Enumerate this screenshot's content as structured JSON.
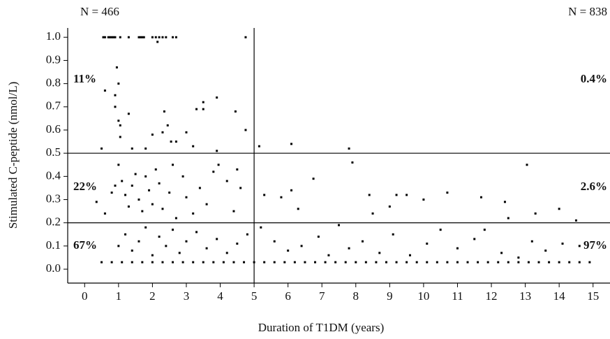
{
  "chart_data": {
    "type": "scatter",
    "xlabel": "Duration of T1DM (years)",
    "ylabel": "Stimulated C-peptide (nmol/L)",
    "annotations": [
      "N = 466",
      "N = 838",
      "11%",
      "0.4%",
      "22%",
      "2.6%",
      "67%",
      "97%"
    ],
    "color": "#000000",
    "xlim": [
      -0.5,
      15.5
    ],
    "ylim": [
      -0.06,
      1.04
    ],
    "xticks": [
      0,
      1,
      2,
      3,
      4,
      5,
      6,
      7,
      8,
      9,
      10,
      11,
      12,
      13,
      14,
      15
    ],
    "yticks": [
      {
        "value": 0,
        "label": "0.0"
      },
      0.1,
      0.2,
      0.3,
      0.4,
      0.5,
      0.6,
      0.7,
      0.8,
      0.9,
      {
        "value": 1,
        "label": "1.0"
      }
    ],
    "reference_lines": {
      "x": [
        5
      ],
      "y": [
        0.2,
        0.5
      ]
    },
    "x": [
      0.55,
      0.6,
      0.7,
      0.75,
      0.8,
      0.85,
      0.9,
      1.05,
      1.3,
      1.6,
      1.65,
      1.7,
      1.75,
      2.0,
      2.1,
      2.2,
      2.3,
      2.4,
      2.6,
      2.7,
      4.75,
      2.15,
      0.6,
      0.95,
      1.0,
      0.9,
      0.9,
      1.0,
      1.05,
      1.05,
      1.3,
      2.0,
      2.35,
      2.45,
      2.3,
      2.55,
      2.7,
      3.0,
      3.2,
      3.3,
      3.5,
      3.5,
      3.9,
      4.45,
      4.75,
      0.5,
      1.4,
      1.8,
      3.9,
      5.15,
      6.1,
      7.8,
      0.35,
      0.6,
      0.8,
      0.9,
      1.0,
      1.1,
      1.2,
      1.3,
      1.4,
      1.5,
      1.6,
      1.7,
      1.8,
      1.9,
      2.0,
      2.1,
      2.2,
      2.3,
      2.5,
      2.6,
      2.7,
      2.9,
      3.0,
      3.2,
      3.4,
      3.6,
      3.8,
      3.95,
      4.2,
      4.5,
      4.6,
      4.4,
      5.3,
      5.8,
      6.1,
      6.3,
      6.75,
      7.9,
      8.4,
      8.5,
      9.0,
      9.2,
      9.5,
      10.0,
      10.7,
      11.7,
      12.4,
      12.5,
      13.05,
      13.3,
      14.0,
      14.5,
      0.5,
      0.8,
      1.1,
      1.4,
      1.7,
      2.0,
      2.3,
      2.6,
      2.9,
      3.2,
      3.5,
      3.8,
      4.1,
      4.4,
      4.7,
      5.0,
      5.3,
      5.6,
      5.9,
      6.2,
      6.5,
      6.8,
      7.1,
      7.4,
      7.7,
      8.0,
      8.3,
      8.6,
      8.9,
      9.2,
      9.5,
      9.8,
      10.1,
      10.4,
      10.7,
      11.0,
      11.3,
      11.6,
      11.9,
      12.2,
      12.5,
      12.8,
      13.1,
      13.4,
      13.7,
      14.0,
      14.3,
      14.6,
      14.9,
      1.0,
      1.2,
      1.4,
      1.6,
      1.8,
      2.0,
      2.2,
      2.4,
      2.6,
      2.8,
      3.0,
      3.3,
      3.6,
      3.9,
      4.2,
      4.5,
      4.8,
      5.2,
      5.6,
      6.0,
      6.4,
      6.9,
      7.2,
      7.5,
      7.8,
      8.2,
      8.7,
      9.1,
      9.6,
      10.1,
      10.5,
      11.0,
      11.5,
      11.8,
      12.3,
      12.8,
      13.2,
      13.6,
      14.1,
      14.6
    ],
    "values": [
      1.0,
      1.0,
      1.0,
      1.0,
      1.0,
      1.0,
      1.0,
      1.0,
      1.0,
      1.0,
      1.0,
      1.0,
      1.0,
      1.0,
      1.0,
      1.0,
      1.0,
      1.0,
      1.0,
      1.0,
      1.0,
      0.98,
      0.77,
      0.87,
      0.8,
      0.7,
      0.75,
      0.64,
      0.62,
      0.57,
      0.67,
      0.58,
      0.68,
      0.62,
      0.59,
      0.55,
      0.55,
      0.59,
      0.53,
      0.69,
      0.72,
      0.69,
      0.74,
      0.68,
      0.6,
      0.52,
      0.52,
      0.52,
      0.51,
      0.53,
      0.54,
      0.52,
      0.29,
      0.24,
      0.33,
      0.36,
      0.45,
      0.38,
      0.32,
      0.27,
      0.36,
      0.41,
      0.3,
      0.25,
      0.4,
      0.34,
      0.28,
      0.43,
      0.37,
      0.26,
      0.33,
      0.45,
      0.22,
      0.4,
      0.31,
      0.24,
      0.35,
      0.28,
      0.42,
      0.45,
      0.38,
      0.43,
      0.35,
      0.25,
      0.32,
      0.31,
      0.34,
      0.26,
      0.39,
      0.46,
      0.32,
      0.24,
      0.27,
      0.32,
      0.32,
      0.3,
      0.33,
      0.31,
      0.29,
      0.22,
      0.45,
      0.24,
      0.26,
      0.21,
      0.03,
      0.03,
      0.03,
      0.03,
      0.03,
      0.03,
      0.03,
      0.03,
      0.03,
      0.03,
      0.03,
      0.03,
      0.03,
      0.03,
      0.03,
      0.03,
      0.03,
      0.03,
      0.03,
      0.03,
      0.03,
      0.03,
      0.03,
      0.03,
      0.03,
      0.03,
      0.03,
      0.03,
      0.03,
      0.03,
      0.03,
      0.03,
      0.03,
      0.03,
      0.03,
      0.03,
      0.03,
      0.03,
      0.03,
      0.03,
      0.03,
      0.03,
      0.03,
      0.03,
      0.03,
      0.03,
      0.03,
      0.03,
      0.03,
      0.1,
      0.15,
      0.08,
      0.12,
      0.18,
      0.06,
      0.14,
      0.1,
      0.17,
      0.07,
      0.12,
      0.16,
      0.09,
      0.13,
      0.07,
      0.11,
      0.15,
      0.18,
      0.12,
      0.08,
      0.1,
      0.14,
      0.06,
      0.19,
      0.09,
      0.12,
      0.07,
      0.15,
      0.06,
      0.11,
      0.17,
      0.09,
      0.13,
      0.17,
      0.07,
      0.05,
      0.12,
      0.08,
      0.11,
      0.1
    ]
  }
}
